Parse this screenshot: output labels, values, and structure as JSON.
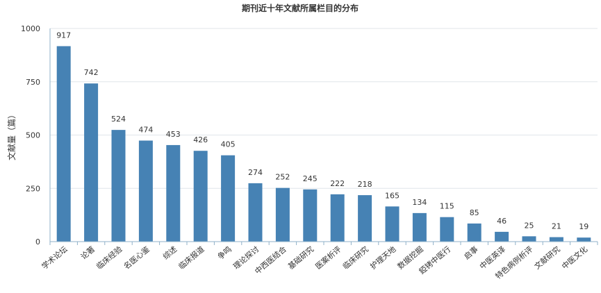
{
  "chart_data": {
    "type": "bar",
    "title": "期刊近十年文献所属栏目的分布",
    "xlabel": "",
    "ylabel": "文献量（篇）",
    "ylim": [
      0,
      1000
    ],
    "yticks": [
      0,
      250,
      500,
      750,
      1000
    ],
    "grid": true,
    "bar_color": "#4682b4",
    "categories": [
      "学术论坛",
      "论著",
      "临床经验",
      "名医心鉴",
      "综述",
      "临床报道",
      "争鸣",
      "理论探讨",
      "中西医结合",
      "基础研究",
      "医案析评",
      "临床研究",
      "护理天地",
      "数据挖掘",
      "錏铐中医行",
      "启事",
      "中医英译",
      "特色病例析评",
      "文献研究",
      "中医文化"
    ],
    "values": [
      917,
      742,
      524,
      474,
      453,
      426,
      405,
      274,
      252,
      245,
      222,
      218,
      165,
      134,
      115,
      85,
      46,
      25,
      21,
      19
    ]
  }
}
